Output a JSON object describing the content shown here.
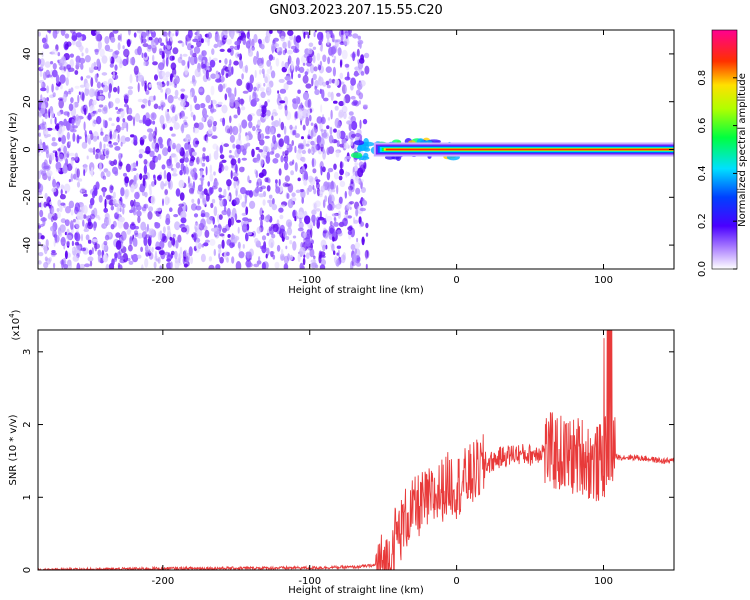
{
  "title": "GN03.2023.207.15.55.C20",
  "chart_data": [
    {
      "type": "heatmap",
      "name": "spectrogram",
      "xlabel": "Height of straight line (km)",
      "ylabel": "Frequency (Hz)",
      "xlim": [
        -285,
        148
      ],
      "ylim": [
        -50,
        50
      ],
      "x_ticks": [
        -200,
        -100,
        0,
        100
      ],
      "y_ticks": [
        -40,
        -20,
        0,
        20,
        40
      ],
      "noise_region_x": [
        -285,
        -65
      ],
      "signal_line_frequency": 0,
      "colorbar": {
        "label": "Normalized spectral amplitude",
        "range": [
          0.0,
          1.0
        ],
        "ticks": [
          0.0,
          0.2,
          0.4,
          0.6,
          0.8
        ],
        "colors": [
          "#ffffff",
          "#a070ff",
          "#4000ff",
          "#0050ff",
          "#00e0ff",
          "#00ff60",
          "#c0ff00",
          "#ffe000",
          "#ff4000",
          "#ff0080"
        ]
      }
    },
    {
      "type": "line",
      "name": "snr",
      "xlabel": "Height of straight line (km)",
      "ylabel": "SNR (10 * v/v)",
      "y_multiplier": "(x10",
      "y_multiplier_exp": "4",
      "y_multiplier_close": ")",
      "xlim": [
        -285,
        148
      ],
      "ylim": [
        0,
        3.3
      ],
      "x_ticks": [
        -200,
        -100,
        0,
        100
      ],
      "y_ticks": [
        0,
        1,
        2,
        3
      ],
      "color": "#e83a3a",
      "series": [
        {
          "x": [
            -285,
            -200,
            -100,
            -70,
            -48,
            -45,
            -42,
            -38,
            -35,
            -30,
            -25,
            -20,
            -15,
            -10,
            -5,
            0,
            10,
            20,
            30,
            40,
            50,
            60,
            70,
            80,
            85,
            90,
            95,
            100,
            102,
            104,
            106,
            110,
            120,
            130,
            140,
            148
          ],
          "y": [
            0.0,
            0.02,
            0.03,
            0.04,
            0.08,
            0.2,
            0.45,
            0.55,
            0.7,
            0.8,
            0.9,
            0.95,
            1.0,
            1.1,
            1.2,
            1.15,
            1.3,
            1.45,
            1.55,
            1.6,
            1.58,
            1.65,
            1.6,
            1.55,
            1.6,
            1.5,
            1.45,
            1.5,
            1.6,
            1.65,
            1.6,
            1.55,
            1.55,
            1.53,
            1.5,
            1.5
          ]
        }
      ]
    }
  ]
}
